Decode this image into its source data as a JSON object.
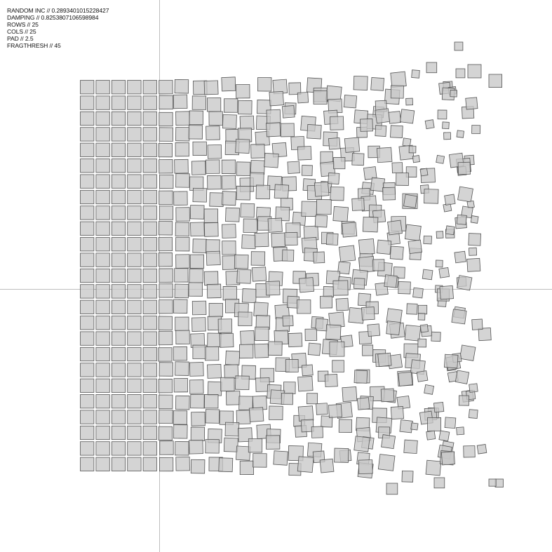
{
  "params": {
    "random_inc": "RANDOM INC // 0.2893401015228427",
    "damping": "DAMPING // 0.8253807106598984",
    "rows": "ROWS // 25",
    "cols": "COLS // 25",
    "pad": "PAD // 2.5",
    "fragthresh": "FRAGTHRESH // 45"
  },
  "grid": {
    "rows": 25,
    "cols": 25,
    "pad": 2.5,
    "random_inc": 0.2893401015228427,
    "damping": 0.8253807106598984,
    "fragthresh": 45
  },
  "colors": {
    "background": "#ffffff",
    "square_fill": "#c8c8c8",
    "square_stroke": "#555555",
    "guide_line": "#bdbdbd",
    "text": "#111111"
  }
}
